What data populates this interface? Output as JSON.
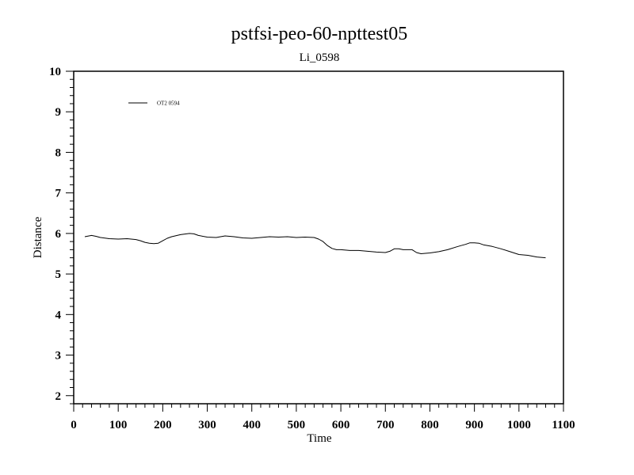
{
  "chart_data": {
    "type": "line",
    "title": "pstfsi-peo-60-npttest05",
    "subtitle": "Li_0598",
    "xlabel": "Time",
    "ylabel": "Distance",
    "xlim": [
      0,
      1100
    ],
    "ylim": [
      1.8,
      10
    ],
    "x_major_ticks": [
      0,
      100,
      200,
      300,
      400,
      500,
      600,
      700,
      800,
      900,
      1000,
      1100
    ],
    "x_minor_step": 20,
    "y_major_ticks": [
      2,
      3,
      4,
      5,
      6,
      7,
      8,
      9,
      10
    ],
    "y_minor_step": 0.2,
    "grid": false,
    "legend_position": "top-left",
    "series": [
      {
        "name": "OT2 0594",
        "color": "#000000",
        "x": [
          25,
          40,
          50,
          60,
          80,
          100,
          120,
          140,
          150,
          160,
          170,
          180,
          190,
          200,
          210,
          220,
          240,
          260,
          270,
          280,
          300,
          320,
          340,
          360,
          380,
          400,
          420,
          440,
          460,
          480,
          500,
          520,
          540,
          550,
          560,
          570,
          580,
          590,
          600,
          620,
          640,
          660,
          680,
          700,
          710,
          720,
          730,
          740,
          760,
          770,
          780,
          790,
          800,
          820,
          840,
          860,
          870,
          880,
          890,
          900,
          910,
          920,
          940,
          960,
          980,
          1000,
          1020,
          1040,
          1060
        ],
        "y": [
          5.92,
          5.95,
          5.93,
          5.9,
          5.87,
          5.86,
          5.87,
          5.85,
          5.82,
          5.78,
          5.76,
          5.75,
          5.76,
          5.82,
          5.88,
          5.92,
          5.97,
          6.0,
          5.99,
          5.95,
          5.91,
          5.9,
          5.94,
          5.92,
          5.89,
          5.88,
          5.9,
          5.92,
          5.91,
          5.92,
          5.9,
          5.91,
          5.9,
          5.86,
          5.8,
          5.7,
          5.63,
          5.6,
          5.6,
          5.58,
          5.58,
          5.56,
          5.54,
          5.53,
          5.56,
          5.62,
          5.62,
          5.6,
          5.6,
          5.53,
          5.5,
          5.51,
          5.52,
          5.55,
          5.6,
          5.67,
          5.7,
          5.73,
          5.77,
          5.77,
          5.76,
          5.72,
          5.68,
          5.62,
          5.55,
          5.48,
          5.46,
          5.42,
          5.4
        ]
      }
    ]
  }
}
